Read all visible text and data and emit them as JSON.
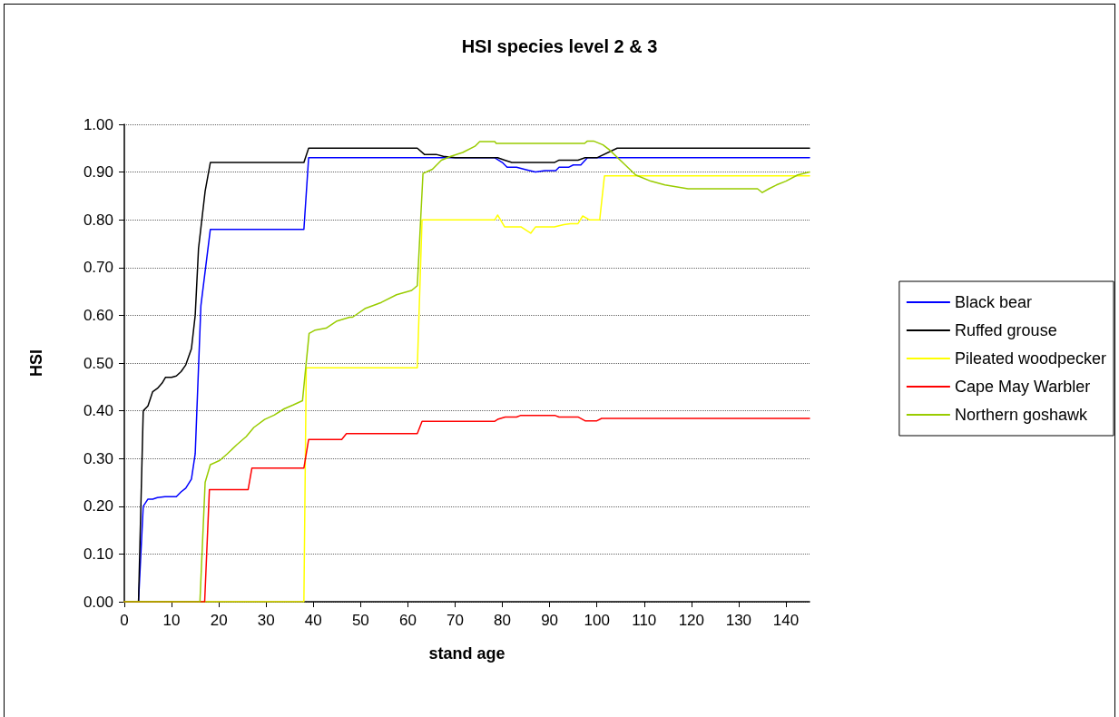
{
  "chart_data": {
    "type": "line",
    "title": "HSI species level 2 & 3",
    "xlabel": "stand age",
    "ylabel": "HSI",
    "xlim": [
      0,
      145
    ],
    "xticks": [
      0,
      10,
      20,
      30,
      40,
      50,
      60,
      70,
      80,
      90,
      100,
      110,
      120,
      130,
      140
    ],
    "ylim": [
      0,
      1
    ],
    "yticks": [
      {
        "value": 0,
        "label": "0.00"
      },
      {
        "value": 0.1,
        "label": "0.10"
      },
      {
        "value": 0.2,
        "label": "0.20"
      },
      {
        "value": 0.3,
        "label": "0.30"
      },
      {
        "value": 0.4,
        "label": "0.40"
      },
      {
        "value": 0.5,
        "label": "0.50"
      },
      {
        "value": 0.6,
        "label": "0.60"
      },
      {
        "value": 0.7,
        "label": "0.70"
      },
      {
        "value": 0.8,
        "label": "0.80"
      },
      {
        "value": 0.9,
        "label": "0.90"
      },
      {
        "value": 1,
        "label": "1.00"
      }
    ],
    "grid": "y",
    "legend": "right",
    "marker": "none",
    "line_style": "solid",
    "series": [
      {
        "name": "Black bear",
        "color": "#0000ff",
        "x": [
          0,
          3,
          4,
          5,
          6,
          7,
          8.6,
          11,
          12,
          13,
          14.2,
          15,
          16.2,
          18.2,
          38,
          39,
          78.4,
          80,
          81,
          83,
          85,
          87,
          89,
          91.3,
          92,
          94,
          95,
          96.6,
          98,
          145
        ],
        "values": [
          0,
          0,
          0.2,
          0.215,
          0.215,
          0.218,
          0.22,
          0.22,
          0.23,
          0.238,
          0.257,
          0.31,
          0.62,
          0.78,
          0.78,
          0.93,
          0.93,
          0.92,
          0.91,
          0.91,
          0.905,
          0.9,
          0.903,
          0.903,
          0.91,
          0.91,
          0.915,
          0.915,
          0.93,
          0.93
        ]
      },
      {
        "name": "Ruffed grouse",
        "color": "#000000",
        "x": [
          0,
          3,
          4,
          5,
          6,
          7,
          8,
          8.7,
          10,
          11,
          12,
          13,
          14.2,
          15,
          15.7,
          17.1,
          18.2,
          38,
          39,
          62,
          63.5,
          66,
          67.5,
          70,
          79,
          80.5,
          82,
          91,
          92,
          96,
          97.5,
          100,
          104.3,
          145
        ],
        "values": [
          0,
          0,
          0.4,
          0.41,
          0.44,
          0.447,
          0.458,
          0.47,
          0.47,
          0.473,
          0.482,
          0.496,
          0.53,
          0.6,
          0.74,
          0.86,
          0.92,
          0.92,
          0.95,
          0.95,
          0.937,
          0.937,
          0.933,
          0.93,
          0.93,
          0.925,
          0.92,
          0.92,
          0.925,
          0.925,
          0.93,
          0.93,
          0.95,
          0.95
        ]
      },
      {
        "name": "Pileated woodpecker",
        "color": "#ffff00",
        "x": [
          0,
          38,
          38.5,
          62,
          63,
          78.4,
          79,
          80.5,
          84,
          86,
          87,
          91,
          93,
          94.4,
          96,
          97,
          98.4,
          100.6,
          101.6,
          145
        ],
        "values": [
          0,
          0,
          0.49,
          0.49,
          0.8,
          0.8,
          0.81,
          0.785,
          0.785,
          0.772,
          0.785,
          0.785,
          0.79,
          0.792,
          0.792,
          0.808,
          0.8,
          0.8,
          0.892,
          0.892
        ]
      },
      {
        "name": "Cape May Warbler",
        "color": "#ff0000",
        "x": [
          0,
          17,
          18,
          26.2,
          27,
          38,
          39,
          46,
          47,
          62,
          63,
          78.4,
          79,
          80.6,
          83,
          83.8,
          91.2,
          92,
          96,
          97.5,
          100,
          101,
          145
        ],
        "values": [
          0,
          0,
          0.235,
          0.235,
          0.28,
          0.28,
          0.34,
          0.34,
          0.352,
          0.352,
          0.378,
          0.378,
          0.382,
          0.387,
          0.387,
          0.39,
          0.39,
          0.387,
          0.387,
          0.379,
          0.379,
          0.384,
          0.384
        ]
      },
      {
        "name": "Northern goshawk",
        "color": "#99cc00",
        "x": [
          0,
          16,
          17.1,
          18.2,
          20.2,
          21.8,
          23.8,
          25.8,
          27.4,
          29.7,
          31.7,
          33.8,
          35.7,
          37.7,
          39.1,
          40.4,
          42.7,
          45,
          47.7,
          48.3,
          50.9,
          54.4,
          57.6,
          60.8,
          62,
          63.2,
          65.2,
          67.1,
          69.1,
          71.6,
          74.2,
          75.2,
          78.4,
          78.7,
          97.4,
          98,
          99.3,
          101.3,
          102.6,
          105.9,
          108.2,
          111.4,
          114.4,
          119.3,
          134,
          135,
          136.4,
          138,
          140,
          142.5,
          145
        ],
        "values": [
          0,
          0,
          0.25,
          0.287,
          0.296,
          0.31,
          0.329,
          0.346,
          0.365,
          0.382,
          0.391,
          0.404,
          0.412,
          0.421,
          0.562,
          0.569,
          0.573,
          0.588,
          0.596,
          0.596,
          0.614,
          0.627,
          0.643,
          0.652,
          0.662,
          0.897,
          0.906,
          0.925,
          0.933,
          0.941,
          0.954,
          0.964,
          0.964,
          0.96,
          0.96,
          0.965,
          0.965,
          0.957,
          0.947,
          0.916,
          0.894,
          0.881,
          0.873,
          0.865,
          0.865,
          0.857,
          0.865,
          0.873,
          0.881,
          0.894,
          0.9
        ]
      }
    ]
  }
}
